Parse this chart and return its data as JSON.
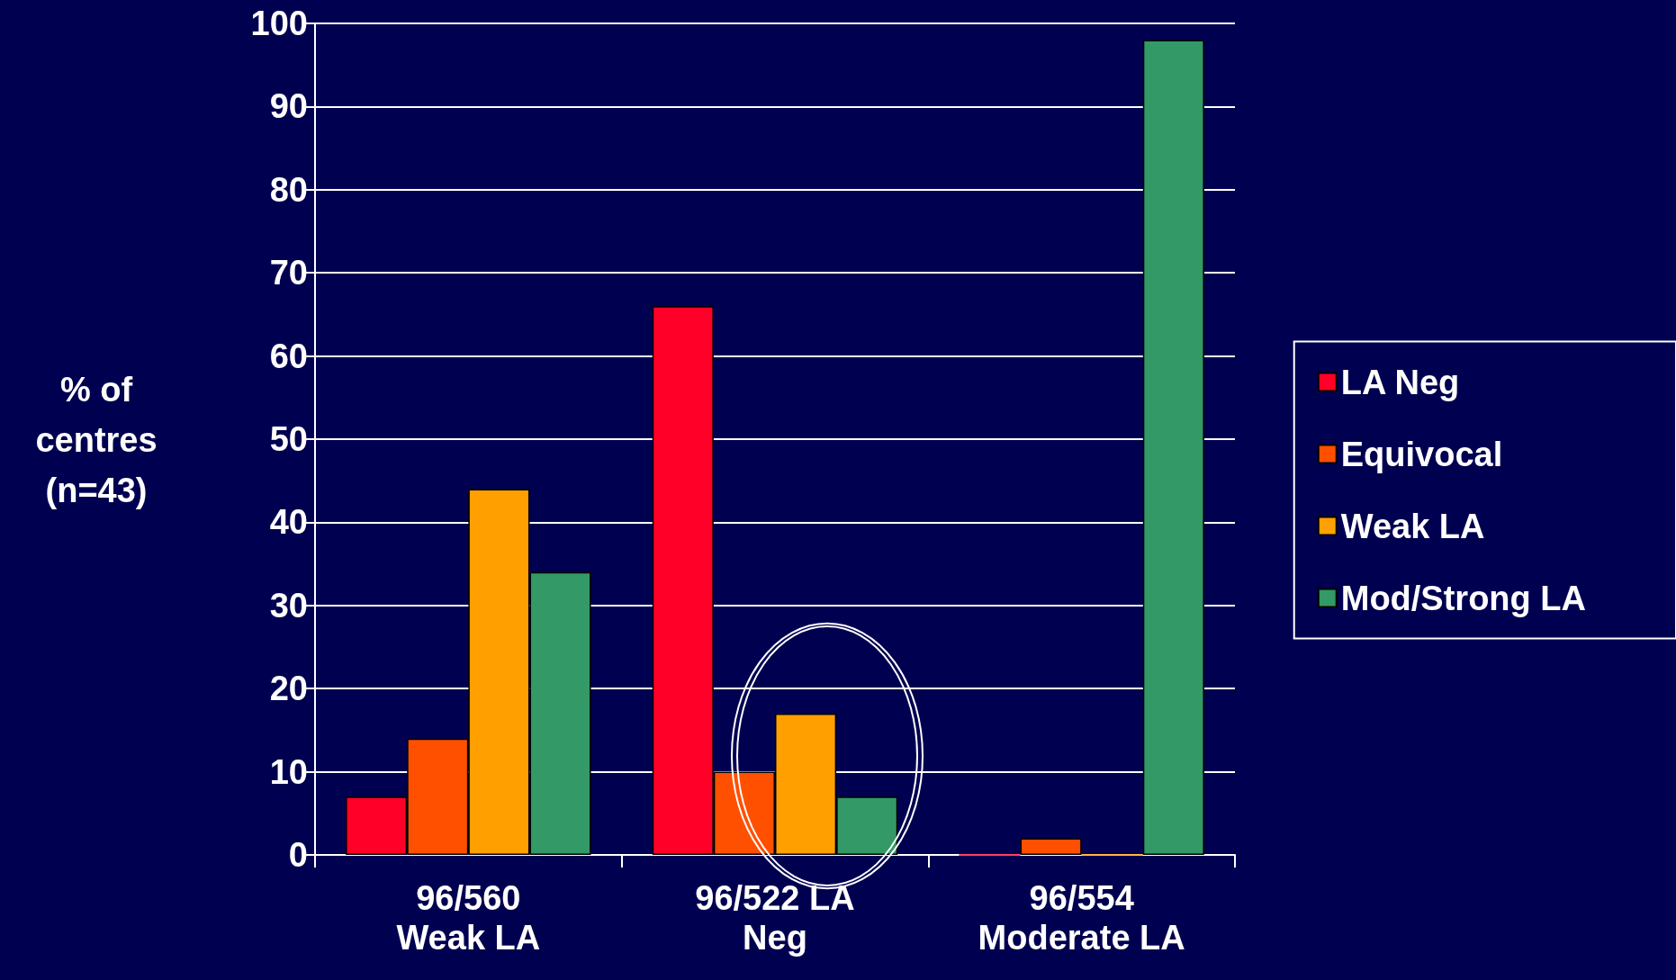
{
  "chart_data": {
    "type": "bar",
    "ylabel": "% of\ncentres\n(n=43)",
    "categories": [
      "96/560\nWeak LA",
      "96/522 LA\nNeg",
      "96/554\nModerate LA"
    ],
    "series": [
      {
        "name": "LA Neg",
        "color": "#ff0028",
        "values": [
          7,
          66,
          0
        ]
      },
      {
        "name": "Equivocal",
        "color": "#ff5000",
        "values": [
          14,
          10,
          2
        ]
      },
      {
        "name": "Weak LA",
        "color": "#ffa000",
        "values": [
          44,
          17,
          0
        ]
      },
      {
        "name": "Mod/Strong LA",
        "color": "#339966",
        "values": [
          34,
          7,
          98
        ]
      }
    ],
    "ylim": [
      0,
      100
    ],
    "yticks": [
      0,
      10,
      20,
      30,
      40,
      50,
      60,
      70,
      80,
      90,
      100
    ],
    "grid": "y",
    "legend": "right"
  }
}
